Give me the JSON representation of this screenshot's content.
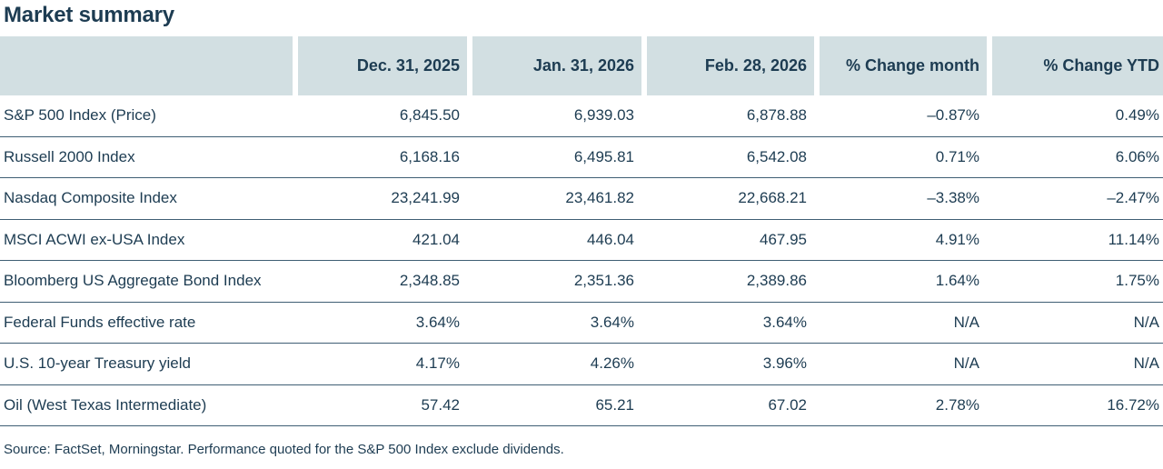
{
  "title": "Market summary",
  "chart_data": {
    "type": "table",
    "title": "Market summary",
    "columns": [
      "",
      "Dec. 31, 2025",
      "Jan. 31, 2026",
      "Feb. 28, 2026",
      "% Change month",
      "% Change YTD"
    ],
    "rows": [
      {
        "label": "S&P 500 Index (Price)",
        "values": [
          "6,845.50",
          "6,939.03",
          "6,878.88",
          "–0.87%",
          "0.49%"
        ]
      },
      {
        "label": "Russell 2000 Index",
        "values": [
          "6,168.16",
          "6,495.81",
          "6,542.08",
          "0.71%",
          "6.06%"
        ]
      },
      {
        "label": "Nasdaq Composite Index",
        "values": [
          "23,241.99",
          "23,461.82",
          "22,668.21",
          "–3.38%",
          "–2.47%"
        ]
      },
      {
        "label": "MSCI ACWI ex-USA Index",
        "values": [
          "421.04",
          "446.04",
          "467.95",
          "4.91%",
          "11.14%"
        ]
      },
      {
        "label": "Bloomberg US Aggregate Bond Index",
        "values": [
          "2,348.85",
          "2,351.36",
          "2,389.86",
          "1.64%",
          "1.75%"
        ]
      },
      {
        "label": "Federal Funds effective rate",
        "values": [
          "3.64%",
          "3.64%",
          "3.64%",
          "N/A",
          "N/A"
        ]
      },
      {
        "label": "U.S. 10-year Treasury yield",
        "values": [
          "4.17%",
          "4.26%",
          "3.96%",
          "N/A",
          "N/A"
        ]
      },
      {
        "label": "Oil (West Texas Intermediate)",
        "values": [
          "57.42",
          "65.21",
          "67.02",
          "2.78%",
          "16.72%"
        ]
      }
    ]
  },
  "footer": {
    "source_note": "Source: FactSet, Morningstar. Performance quoted for the S&P 500 Index exclude dividends."
  },
  "colors": {
    "header_bg": "#d2dfe2",
    "text": "#1d3c52",
    "row_border": "#3f5e74",
    "background": "#ffffff"
  }
}
